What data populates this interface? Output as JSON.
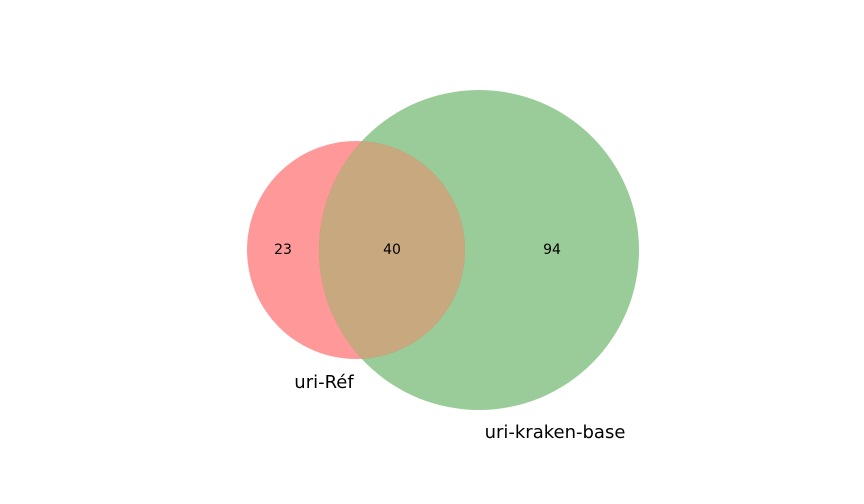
{
  "chart_data": {
    "type": "venn",
    "sets": [
      {
        "label": "uri-Réf",
        "only": "23",
        "color": "#ff0000"
      },
      {
        "label": "uri-kraken-base",
        "only": "94",
        "color": "#008000"
      }
    ],
    "intersection": "40",
    "intersection_color": "#c8a87e",
    "fill_opacity": 0.4
  }
}
